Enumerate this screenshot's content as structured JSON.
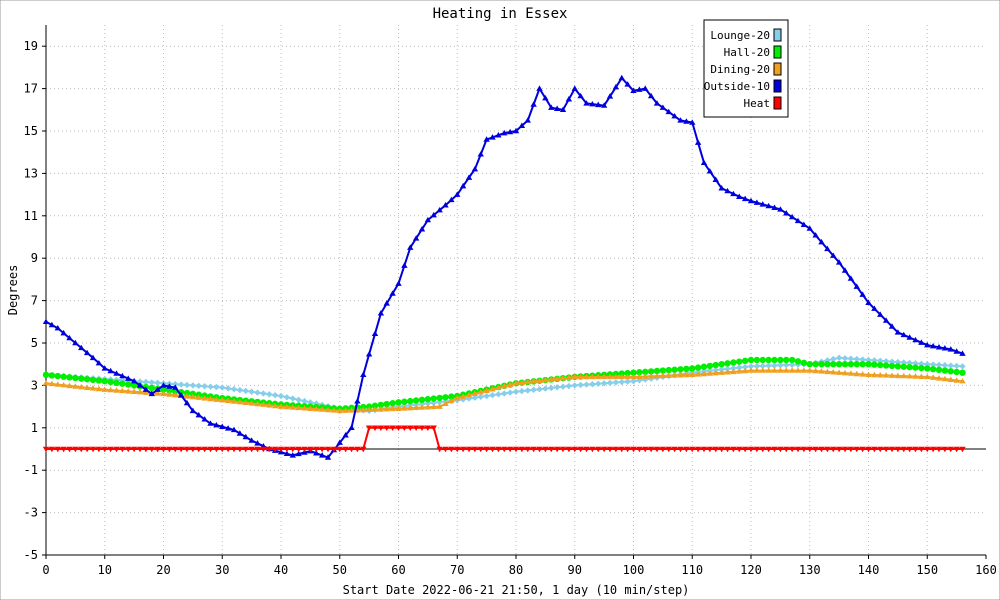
{
  "chart_data": {
    "type": "line",
    "title": "Heating in Essex",
    "xlabel": "Start Date 2022-06-21 21:50, 1 day (10 min/step)",
    "ylabel": "Degrees",
    "xlim": [
      0,
      160
    ],
    "ylim": [
      -5,
      20
    ],
    "xticks": [
      0,
      10,
      20,
      30,
      40,
      50,
      60,
      70,
      80,
      90,
      100,
      110,
      120,
      130,
      140,
      150,
      160
    ],
    "yticks": [
      -5,
      -3,
      -1,
      1,
      3,
      5,
      7,
      9,
      11,
      13,
      15,
      17,
      19
    ],
    "grid": true,
    "legend_position": "top-right",
    "series": [
      {
        "name": "Lounge-20",
        "color": "#87ceeb",
        "marker": "diamond",
        "points": [
          [
            0,
            3.5
          ],
          [
            10,
            3.3
          ],
          [
            20,
            3.1
          ],
          [
            30,
            2.9
          ],
          [
            40,
            2.5
          ],
          [
            45,
            2.2
          ],
          [
            50,
            1.9
          ],
          [
            55,
            1.8
          ],
          [
            60,
            2.0
          ],
          [
            70,
            2.3
          ],
          [
            80,
            2.7
          ],
          [
            90,
            3.0
          ],
          [
            100,
            3.2
          ],
          [
            110,
            3.6
          ],
          [
            120,
            3.9
          ],
          [
            130,
            4.0
          ],
          [
            135,
            4.3
          ],
          [
            140,
            4.2
          ],
          [
            150,
            4.0
          ],
          [
            156,
            3.9
          ]
        ]
      },
      {
        "name": "Hall-20",
        "color": "#00ee00",
        "marker": "circle",
        "points": [
          [
            0,
            3.5
          ],
          [
            10,
            3.2
          ],
          [
            20,
            2.8
          ],
          [
            30,
            2.4
          ],
          [
            40,
            2.1
          ],
          [
            50,
            1.9
          ],
          [
            55,
            2.0
          ],
          [
            60,
            2.2
          ],
          [
            70,
            2.5
          ],
          [
            80,
            3.1
          ],
          [
            90,
            3.4
          ],
          [
            100,
            3.6
          ],
          [
            110,
            3.8
          ],
          [
            120,
            4.2
          ],
          [
            127,
            4.2
          ],
          [
            130,
            4.0
          ],
          [
            140,
            4.0
          ],
          [
            150,
            3.8
          ],
          [
            156,
            3.6
          ]
        ]
      },
      {
        "name": "Dining-20",
        "color": "#f0a020",
        "marker": "triangle",
        "points": [
          [
            0,
            3.1
          ],
          [
            10,
            2.8
          ],
          [
            20,
            2.6
          ],
          [
            30,
            2.3
          ],
          [
            40,
            2.0
          ],
          [
            50,
            1.8
          ],
          [
            60,
            1.9
          ],
          [
            67,
            2.0
          ],
          [
            70,
            2.4
          ],
          [
            80,
            3.1
          ],
          [
            90,
            3.4
          ],
          [
            100,
            3.4
          ],
          [
            110,
            3.5
          ],
          [
            120,
            3.7
          ],
          [
            130,
            3.7
          ],
          [
            140,
            3.5
          ],
          [
            150,
            3.4
          ],
          [
            156,
            3.2
          ]
        ]
      },
      {
        "name": "Outside-10",
        "color": "#0000dd",
        "marker": "triangle",
        "points": [
          [
            0,
            6.0
          ],
          [
            2,
            5.7
          ],
          [
            5,
            5.0
          ],
          [
            8,
            4.3
          ],
          [
            10,
            3.8
          ],
          [
            15,
            3.2
          ],
          [
            18,
            2.6
          ],
          [
            20,
            3.0
          ],
          [
            22,
            2.9
          ],
          [
            25,
            1.8
          ],
          [
            28,
            1.2
          ],
          [
            32,
            0.9
          ],
          [
            35,
            0.4
          ],
          [
            38,
            0.0
          ],
          [
            42,
            -0.3
          ],
          [
            45,
            -0.1
          ],
          [
            48,
            -0.4
          ],
          [
            50,
            0.3
          ],
          [
            52,
            1.0
          ],
          [
            54,
            3.5
          ],
          [
            57,
            6.4
          ],
          [
            60,
            7.8
          ],
          [
            62,
            9.5
          ],
          [
            65,
            10.8
          ],
          [
            68,
            11.5
          ],
          [
            70,
            12.0
          ],
          [
            73,
            13.2
          ],
          [
            75,
            14.6
          ],
          [
            78,
            14.9
          ],
          [
            80,
            15.0
          ],
          [
            82,
            15.5
          ],
          [
            84,
            17.0
          ],
          [
            86,
            16.1
          ],
          [
            88,
            16.0
          ],
          [
            90,
            17.0
          ],
          [
            92,
            16.3
          ],
          [
            95,
            16.2
          ],
          [
            98,
            17.5
          ],
          [
            100,
            16.9
          ],
          [
            102,
            17.0
          ],
          [
            104,
            16.3
          ],
          [
            106,
            15.9
          ],
          [
            108,
            15.5
          ],
          [
            110,
            15.4
          ],
          [
            112,
            13.5
          ],
          [
            115,
            12.3
          ],
          [
            118,
            11.9
          ],
          [
            120,
            11.7
          ],
          [
            125,
            11.3
          ],
          [
            130,
            10.4
          ],
          [
            135,
            8.8
          ],
          [
            140,
            6.9
          ],
          [
            145,
            5.5
          ],
          [
            150,
            4.9
          ],
          [
            154,
            4.7
          ],
          [
            156,
            4.5
          ]
        ]
      },
      {
        "name": "Heat",
        "color": "#ff0000",
        "marker": "triangle-down",
        "points": [
          [
            0,
            0.0
          ],
          [
            54,
            0.0
          ],
          [
            55,
            1.0
          ],
          [
            66,
            1.0
          ],
          [
            67,
            0.0
          ],
          [
            156,
            0.0
          ]
        ]
      }
    ]
  }
}
